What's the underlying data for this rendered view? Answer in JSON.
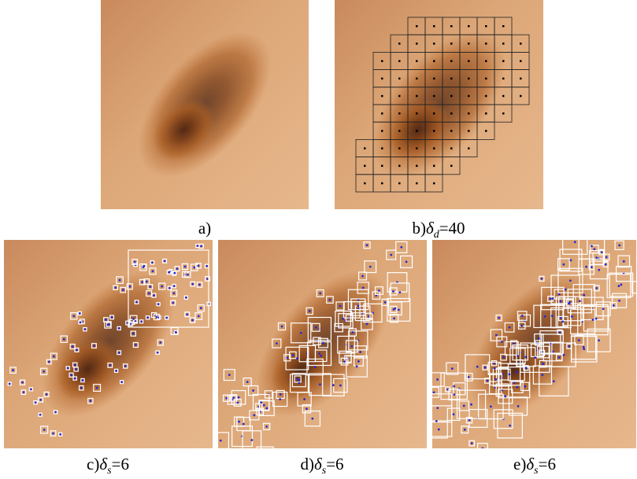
{
  "figure": {
    "panels": [
      {
        "label": "a)"
      },
      {
        "label": "b)",
        "symbol": "δ",
        "subscript": "d",
        "value": "=40"
      },
      {
        "label": "c)",
        "symbol": "δ",
        "subscript": "s",
        "value": "=6"
      },
      {
        "label": "d)",
        "symbol": "δ",
        "subscript": "s",
        "value": "=6"
      },
      {
        "label": "e)",
        "symbol": "δ",
        "subscript": "s",
        "value": "=6"
      }
    ]
  }
}
